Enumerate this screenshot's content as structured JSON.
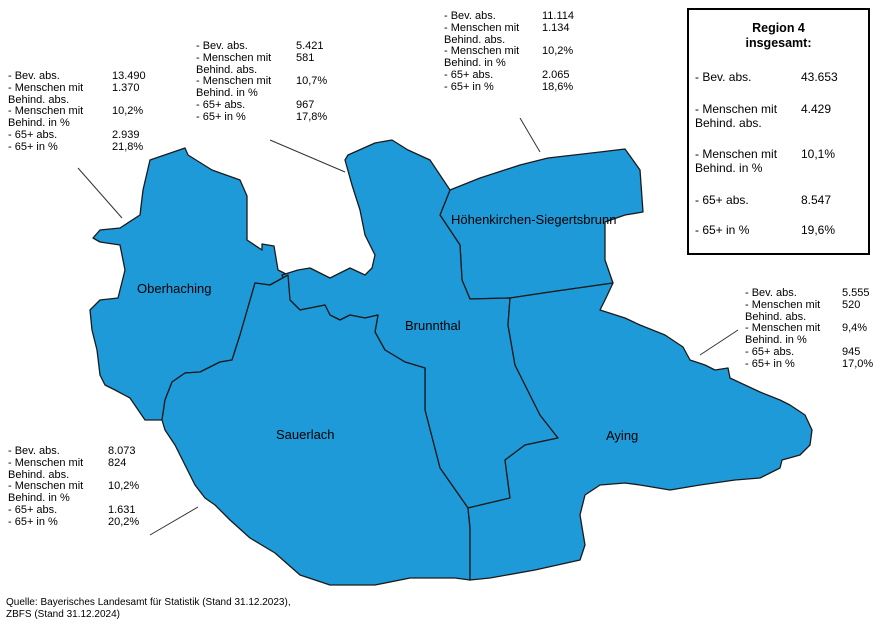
{
  "regions": [
    {
      "label": "Oberhaching"
    },
    {
      "label": "Höhenkirchen-Siegertsbrunn"
    },
    {
      "label": "Brunnthal"
    },
    {
      "label": "Sauerlach"
    },
    {
      "label": "Aying"
    }
  ],
  "stats": {
    "oberhaching": [
      {
        "label": "- Bev. abs.",
        "value": "13.490"
      },
      {
        "label": "- Menschen mit\nBehind. abs.",
        "value": "1.370"
      },
      {
        "label": "- Menschen mit\nBehind. in %",
        "value": "10,2%"
      },
      {
        "label": "- 65+ abs.",
        "value": "2.939"
      },
      {
        "label": "- 65+ in %",
        "value": "21,8%"
      }
    ],
    "brunnthal": [
      {
        "label": "- Bev. abs.",
        "value": "5.421"
      },
      {
        "label": "- Menschen mit\nBehind. abs.",
        "value": "581"
      },
      {
        "label": "- Menschen mit\nBehind. in %",
        "value": "10,7%"
      },
      {
        "label": "- 65+ abs.",
        "value": "967"
      },
      {
        "label": "- 65+ in %",
        "value": "17,8%"
      }
    ],
    "hoehenkirchen": [
      {
        "label": "- Bev. abs.",
        "value": "11.114"
      },
      {
        "label": "- Menschen mit\nBehind. abs.",
        "value": "1.134"
      },
      {
        "label": "- Menschen mit\nBehind. in %",
        "value": "10,2%"
      },
      {
        "label": "- 65+ abs.",
        "value": "2.065"
      },
      {
        "label": "- 65+ in %",
        "value": "18,6%"
      }
    ],
    "aying": [
      {
        "label": "- Bev. abs.",
        "value": "5.555"
      },
      {
        "label": "- Menschen mit\nBehind. abs.",
        "value": "520"
      },
      {
        "label": "- Menschen mit\nBehind. in %",
        "value": "9,4%"
      },
      {
        "label": "- 65+ abs.",
        "value": "945"
      },
      {
        "label": "- 65+ in %",
        "value": "17,0%"
      }
    ],
    "sauerlach": [
      {
        "label": "- Bev. abs.",
        "value": "8.073"
      },
      {
        "label": "- Menschen mit\nBehind. abs.",
        "value": "824"
      },
      {
        "label": "- Menschen mit\nBehind. in %",
        "value": "10,2%"
      },
      {
        "label": "- 65+ abs.",
        "value": "1.631"
      },
      {
        "label": "- 65+ in %",
        "value": "20,2%"
      }
    ]
  },
  "totals": {
    "title": "Region 4\ninsgesamt:",
    "rows": [
      {
        "label": "- Bev. abs.",
        "value": "43.653"
      },
      {
        "label": "- Menschen mit\nBehind. abs.",
        "value": "4.429"
      },
      {
        "label": "- Menschen mit\nBehind. in %",
        "value": "10,1%"
      },
      {
        "label": "- 65+ abs.",
        "value": "8.547"
      },
      {
        "label": "- 65+ in %",
        "value": "19,6%"
      }
    ]
  },
  "source": "Quelle: Bayerisches Landesamt für Statistik (Stand 31.12.2023),\nZBFS (Stand 31.12.2024)",
  "colors": {
    "region_fill": "#1f9ad8",
    "border": "#1a1a1a"
  }
}
